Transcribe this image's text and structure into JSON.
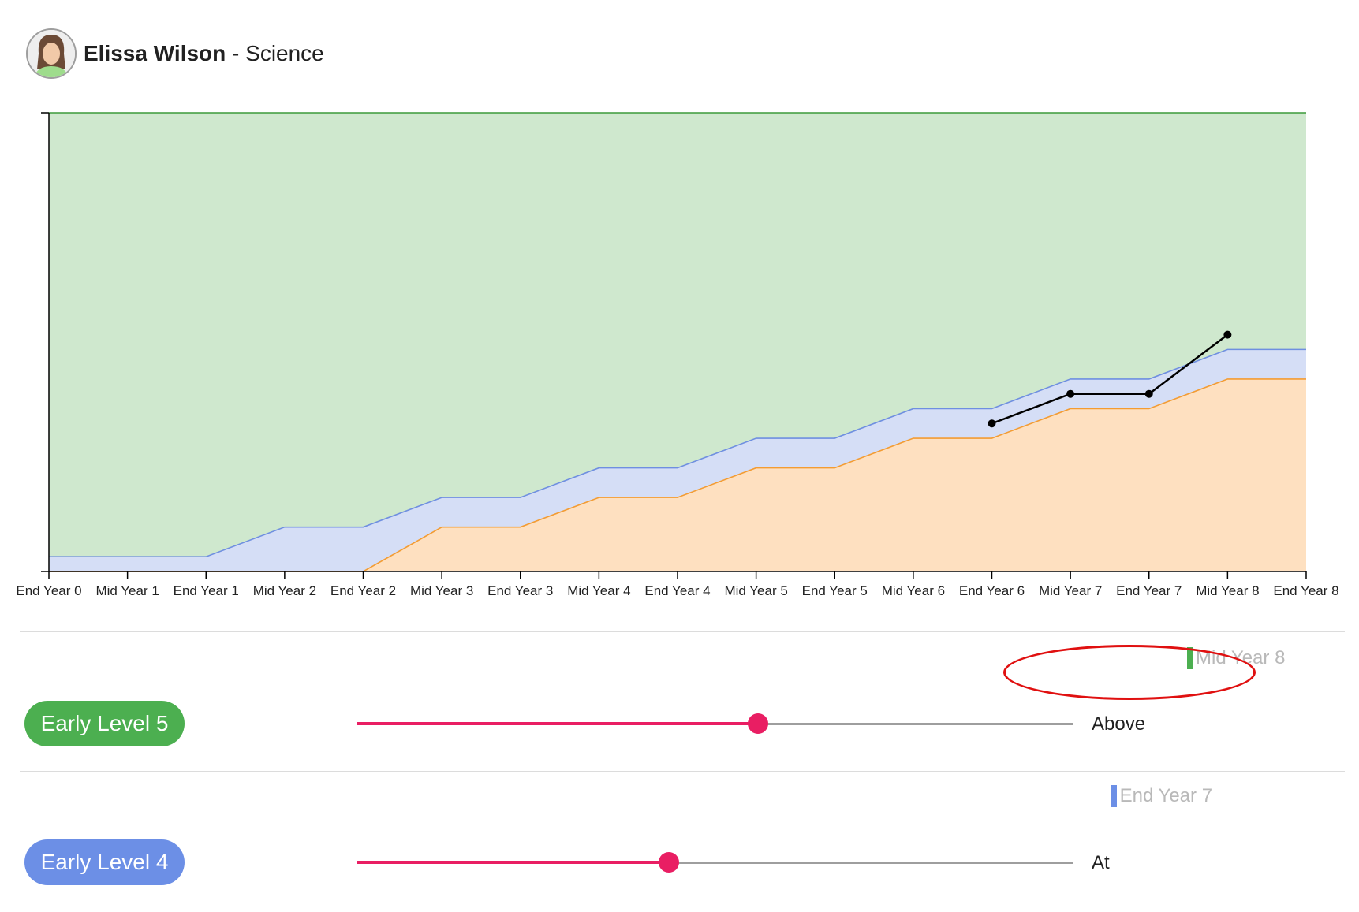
{
  "header": {
    "name": "Elissa Wilson",
    "separator": " - ",
    "subject": "Science"
  },
  "chart_data": {
    "type": "area",
    "title": "",
    "xlabel": "",
    "ylabel": "",
    "categories": [
      "End Year 0",
      "Mid Year 1",
      "End Year 1",
      "Mid Year 2",
      "End Year 2",
      "Mid Year 3",
      "End Year 3",
      "Mid Year 4",
      "End Year 4",
      "Mid Year 5",
      "End Year 5",
      "Mid Year 6",
      "End Year 6",
      "Mid Year 7",
      "End Year 7",
      "Mid Year 8",
      "End Year 8"
    ],
    "y_ticks_labeled": false,
    "ylim": [
      0,
      31
    ],
    "grid": false,
    "bands": [
      {
        "role": "lower",
        "color": "#fee0c0",
        "line_color": "#f39c33",
        "values": [
          0,
          0,
          0,
          0,
          0,
          3,
          3,
          5,
          5,
          7,
          7,
          9,
          9,
          11,
          11,
          13,
          13
        ]
      },
      {
        "role": "middle",
        "color": "#d5def6",
        "line_color": "#6f8fe0",
        "values": [
          1,
          1,
          1,
          3,
          3,
          5,
          5,
          7,
          7,
          9,
          9,
          11,
          11,
          13,
          13,
          15,
          15
        ]
      },
      {
        "role": "upper",
        "color": "#cfe8ce",
        "line_color": "#3c9a3a",
        "values": [
          31,
          31,
          31,
          31,
          31,
          31,
          31,
          31,
          31,
          31,
          31,
          31,
          31,
          31,
          31,
          31,
          31
        ]
      }
    ],
    "series": [
      {
        "color": "#000000",
        "points": [
          {
            "x": "End Year 6",
            "y": 10
          },
          {
            "x": "Mid Year 7",
            "y": 12
          },
          {
            "x": "End Year 7",
            "y": 12
          },
          {
            "x": "Mid Year 8",
            "y": 16
          }
        ]
      }
    ]
  },
  "rows": [
    {
      "level": "Early Level 5",
      "level_color": "#4caf50",
      "marker_label": "Mid Year 8",
      "marker_color": "#4caf50",
      "marker_segment": 15,
      "segments": [
        "gray",
        "gray",
        "gray",
        "gray",
        "gray",
        "gray",
        "gray",
        "gray",
        "gray",
        "gray",
        "gray",
        "gray",
        "gray",
        "blue",
        "blue",
        "green",
        "gray"
      ],
      "slider_value": 0.56,
      "rating": "Above"
    },
    {
      "level": "Early Level 4",
      "level_color": "#6c8fe6",
      "marker_label": "End Year 7",
      "marker_color": "#6c8fe6",
      "marker_segment": 14,
      "segments": [
        "gray",
        "gray",
        "gray",
        "gray",
        "gray",
        "gray",
        "gray",
        "gray",
        "gray",
        "gray",
        "gray",
        "gray",
        "gray",
        "blue",
        "blue",
        "green",
        "gray"
      ],
      "slider_value": 0.435,
      "rating": "At"
    }
  ],
  "colors": {
    "gray": "#bdbdbd",
    "blue": "#6c8fe6",
    "green": "#4caf50",
    "highlight": "#e01010"
  }
}
